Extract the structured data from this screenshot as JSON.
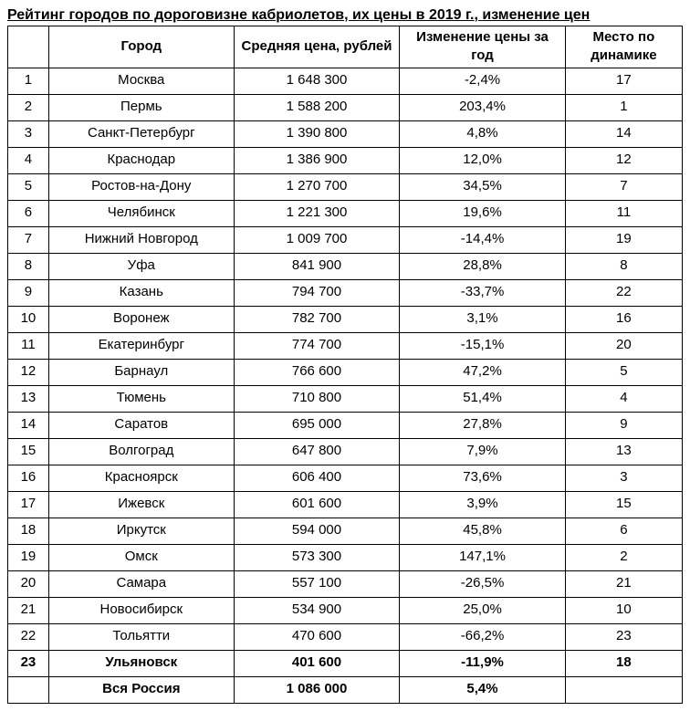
{
  "title": "Рейтинг городов по дороговизне кабриолетов, их цены в 2019 г., изменение цен",
  "columns": [
    "",
    "Город",
    "Средняя цена, рублей",
    "Изменение цены за год",
    "Место по динамике"
  ],
  "rows": [
    {
      "n": "1",
      "city": "Москва",
      "price": "1 648 300",
      "change": "-2,4%",
      "rank": "17",
      "bold": false
    },
    {
      "n": "2",
      "city": "Пермь",
      "price": "1 588 200",
      "change": "203,4%",
      "rank": "1",
      "bold": false
    },
    {
      "n": "3",
      "city": "Санкт-Петербург",
      "price": "1 390 800",
      "change": "4,8%",
      "rank": "14",
      "bold": false
    },
    {
      "n": "4",
      "city": "Краснодар",
      "price": "1 386 900",
      "change": "12,0%",
      "rank": "12",
      "bold": false
    },
    {
      "n": "5",
      "city": "Ростов-на-Дону",
      "price": "1 270 700",
      "change": "34,5%",
      "rank": "7",
      "bold": false
    },
    {
      "n": "6",
      "city": "Челябинск",
      "price": "1 221 300",
      "change": "19,6%",
      "rank": "11",
      "bold": false
    },
    {
      "n": "7",
      "city": "Нижний Новгород",
      "price": "1 009 700",
      "change": "-14,4%",
      "rank": "19",
      "bold": false
    },
    {
      "n": "8",
      "city": "Уфа",
      "price": "841 900",
      "change": "28,8%",
      "rank": "8",
      "bold": false
    },
    {
      "n": "9",
      "city": "Казань",
      "price": "794 700",
      "change": "-33,7%",
      "rank": "22",
      "bold": false
    },
    {
      "n": "10",
      "city": "Воронеж",
      "price": "782 700",
      "change": "3,1%",
      "rank": "16",
      "bold": false
    },
    {
      "n": "11",
      "city": "Екатеринбург",
      "price": "774 700",
      "change": "-15,1%",
      "rank": "20",
      "bold": false
    },
    {
      "n": "12",
      "city": "Барнаул",
      "price": "766 600",
      "change": "47,2%",
      "rank": "5",
      "bold": false
    },
    {
      "n": "13",
      "city": "Тюмень",
      "price": "710 800",
      "change": "51,4%",
      "rank": "4",
      "bold": false
    },
    {
      "n": "14",
      "city": "Саратов",
      "price": "695 000",
      "change": "27,8%",
      "rank": "9",
      "bold": false
    },
    {
      "n": "15",
      "city": "Волгоград",
      "price": "647 800",
      "change": "7,9%",
      "rank": "13",
      "bold": false
    },
    {
      "n": "16",
      "city": "Красноярск",
      "price": "606 400",
      "change": "73,6%",
      "rank": "3",
      "bold": false
    },
    {
      "n": "17",
      "city": "Ижевск",
      "price": "601 600",
      "change": "3,9%",
      "rank": "15",
      "bold": false
    },
    {
      "n": "18",
      "city": "Иркутск",
      "price": "594 000",
      "change": "45,8%",
      "rank": "6",
      "bold": false
    },
    {
      "n": "19",
      "city": "Омск",
      "price": "573 300",
      "change": "147,1%",
      "rank": "2",
      "bold": false
    },
    {
      "n": "20",
      "city": "Самара",
      "price": "557 100",
      "change": "-26,5%",
      "rank": "21",
      "bold": false
    },
    {
      "n": "21",
      "city": "Новосибирск",
      "price": "534 900",
      "change": "25,0%",
      "rank": "10",
      "bold": false
    },
    {
      "n": "22",
      "city": "Тольятти",
      "price": "470 600",
      "change": "-66,2%",
      "rank": "23",
      "bold": false
    },
    {
      "n": "23",
      "city": "Ульяновск",
      "price": "401 600",
      "change": "-11,9%",
      "rank": "18",
      "bold": true
    },
    {
      "n": "",
      "city": "Вся Россия",
      "price": "1 086 000",
      "change": "5,4%",
      "rank": "",
      "bold": true
    }
  ]
}
